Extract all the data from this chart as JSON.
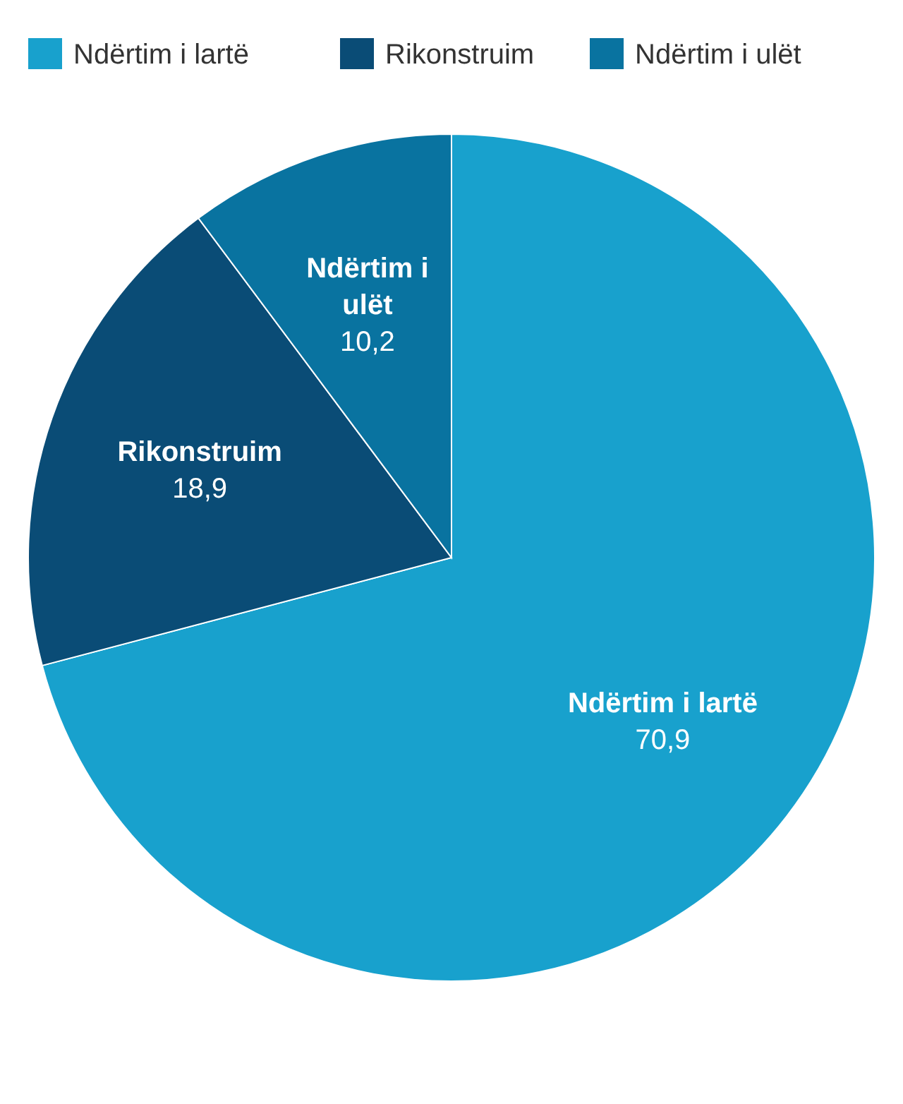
{
  "chart_data": {
    "type": "pie",
    "categories": [
      "Ndërtim i lartë",
      "Rikonstruim",
      "Ndërtim i ulët"
    ],
    "values": [
      70.9,
      18.9,
      10.2
    ],
    "value_labels": [
      "70,9",
      "18,9",
      "10,2"
    ],
    "colors": [
      "#18a1cd",
      "#0a4c76",
      "#0973a0"
    ],
    "legend": "top left"
  }
}
